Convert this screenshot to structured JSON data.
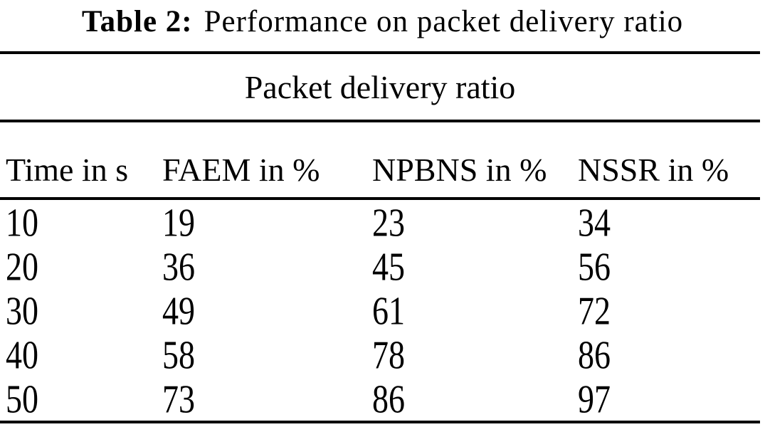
{
  "caption": {
    "label": "Table 2:",
    "text": "Performance on packet delivery ratio"
  },
  "table": {
    "span_header": "Packet delivery ratio",
    "columns": [
      "Time in s",
      "FAEM in %",
      "NPBNS in %",
      "NSSR in %"
    ],
    "rows": [
      [
        "10",
        "19",
        "23",
        "34"
      ],
      [
        "20",
        "36",
        "45",
        "56"
      ],
      [
        "30",
        "49",
        "61",
        "72"
      ],
      [
        "40",
        "58",
        "78",
        "86"
      ],
      [
        "50",
        "73",
        "86",
        "97"
      ]
    ]
  },
  "colors": {
    "text": "#000000",
    "rule": "#000000",
    "background": "#ffffff"
  },
  "chart_data": {
    "type": "table",
    "title": "Table 2: Performance on packet delivery ratio",
    "group_header": "Packet delivery ratio",
    "columns": [
      "Time in s",
      "FAEM in %",
      "NPBNS in %",
      "NSSR in %"
    ],
    "x": [
      10,
      20,
      30,
      40,
      50
    ],
    "series": [
      {
        "name": "FAEM in %",
        "values": [
          19,
          36,
          49,
          58,
          73
        ]
      },
      {
        "name": "NPBNS in %",
        "values": [
          23,
          45,
          61,
          78,
          86
        ]
      },
      {
        "name": "NSSR in %",
        "values": [
          34,
          56,
          72,
          86,
          97
        ]
      }
    ]
  }
}
